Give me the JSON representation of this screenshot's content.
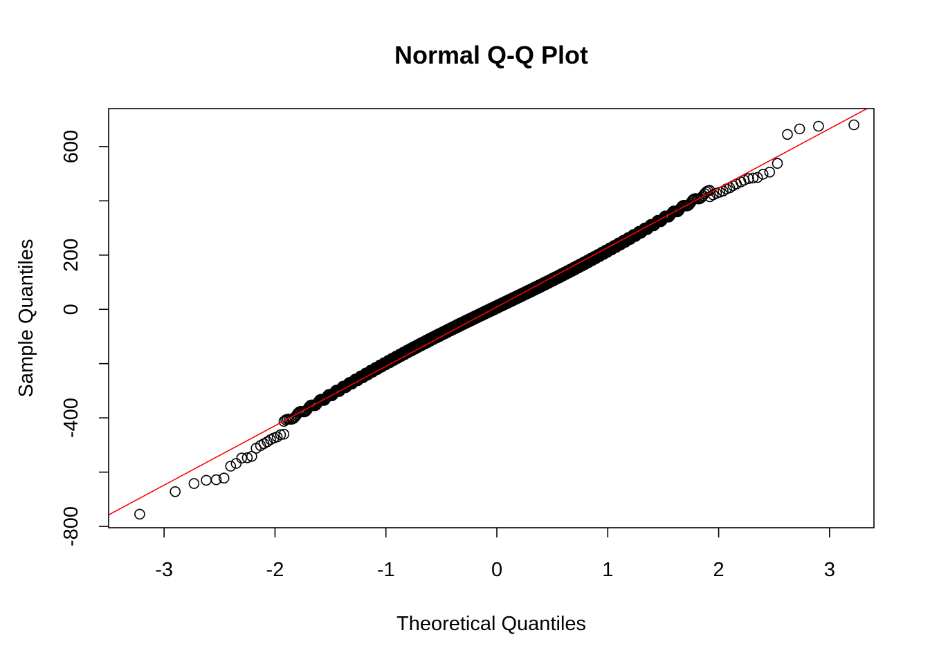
{
  "chart_data": {
    "type": "scatter",
    "title": "Normal Q-Q Plot",
    "xlabel": "Theoretical Quantiles",
    "ylabel": "Sample Quantiles",
    "xlim": [
      -3.5,
      3.4
    ],
    "ylim": [
      -805,
      740
    ],
    "xticks": [
      -3,
      -2,
      -1,
      0,
      1,
      2,
      3
    ],
    "yticks": [
      -800,
      -600,
      -400,
      -200,
      0,
      200,
      400,
      600
    ],
    "ytick_labels": [
      "-800",
      "",
      "-400",
      "",
      "0",
      "200",
      "",
      "600"
    ],
    "n_points": 1000,
    "reference_line": {
      "intercept": 9,
      "slope": 219,
      "color": "#ff0000"
    },
    "point_style": "open-circle",
    "tail_points_low": [
      [
        -3.22,
        -755
      ],
      [
        -2.9,
        -672
      ],
      [
        -2.73,
        -642
      ],
      [
        -2.62,
        -630
      ],
      [
        -2.53,
        -628
      ],
      [
        -2.46,
        -622
      ],
      [
        -2.4,
        -578
      ],
      [
        -2.35,
        -568
      ],
      [
        -2.3,
        -548
      ],
      [
        -2.25,
        -547
      ],
      [
        -2.21,
        -542
      ],
      [
        -2.17,
        -512
      ],
      [
        -2.13,
        -502
      ],
      [
        -2.1,
        -495
      ],
      [
        -2.07,
        -488
      ],
      [
        -2.04,
        -480
      ],
      [
        -2.01,
        -474
      ],
      [
        -1.98,
        -470
      ],
      [
        -1.95,
        -462
      ],
      [
        -1.92,
        -460
      ]
    ],
    "tail_points_high": [
      [
        1.92,
        415
      ],
      [
        1.95,
        422
      ],
      [
        1.98,
        428
      ],
      [
        2.01,
        432
      ],
      [
        2.04,
        436
      ],
      [
        2.07,
        444
      ],
      [
        2.1,
        448
      ],
      [
        2.13,
        456
      ],
      [
        2.16,
        462
      ],
      [
        2.2,
        470
      ],
      [
        2.23,
        476
      ],
      [
        2.27,
        482
      ],
      [
        2.31,
        484
      ],
      [
        2.35,
        486
      ],
      [
        2.4,
        498
      ],
      [
        2.46,
        506
      ],
      [
        2.53,
        538
      ],
      [
        2.62,
        645
      ],
      [
        2.73,
        665
      ],
      [
        2.9,
        675
      ],
      [
        3.22,
        680
      ]
    ]
  }
}
